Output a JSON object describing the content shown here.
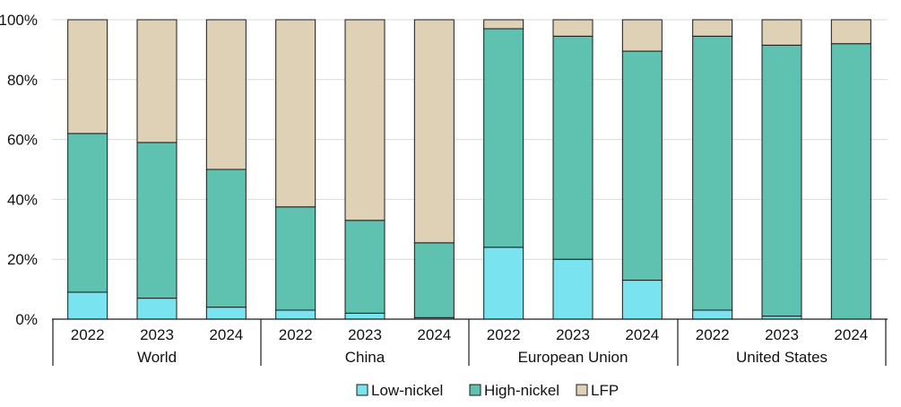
{
  "chart_data": {
    "type": "bar",
    "stacked": true,
    "groups": [
      {
        "name": "World",
        "categories": [
          "2022",
          "2023",
          "2024"
        ]
      },
      {
        "name": "China",
        "categories": [
          "2022",
          "2023",
          "2024"
        ]
      },
      {
        "name": "European Union",
        "categories": [
          "2022",
          "2023",
          "2024"
        ]
      },
      {
        "name": "United States",
        "categories": [
          "2022",
          "2023",
          "2024"
        ]
      }
    ],
    "series": [
      {
        "name": "Low-nickel",
        "color": "#7ae3f0",
        "values": [
          9,
          7,
          4,
          3,
          2,
          0.5,
          24,
          20,
          13,
          3,
          1,
          0
        ]
      },
      {
        "name": "High-nickel",
        "color": "#5fc2b0",
        "values": [
          53,
          52,
          46,
          34.5,
          31,
          25,
          73,
          74.5,
          76.5,
          91.5,
          90.5,
          92
        ]
      },
      {
        "name": "LFP",
        "color": "#ded1b6",
        "values": [
          38,
          41,
          50,
          62.5,
          67,
          74.5,
          3,
          5.5,
          10.5,
          5.5,
          8.5,
          8
        ]
      }
    ],
    "y_ticks": [
      "0%",
      "20%",
      "40%",
      "60%",
      "80%",
      "100%"
    ],
    "ylim": [
      0,
      100
    ],
    "grid": true,
    "legend_position": "bottom"
  }
}
